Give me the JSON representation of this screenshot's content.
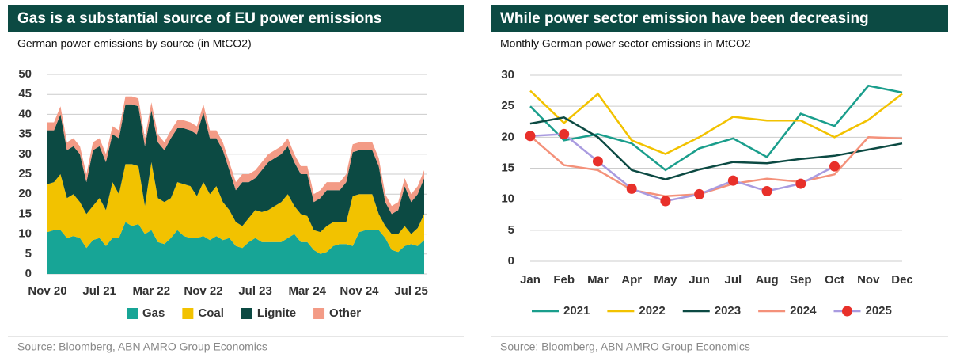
{
  "chart_data": [
    {
      "type": "area",
      "stacked": true,
      "title": "Gas is a substantial source of EU power emissions",
      "subtitle": "German power emissions by source (in MtCO2)",
      "source": "Source: Bloomberg, ABN AMRO Group Economics",
      "categories": [
        "Nov 20",
        null,
        null,
        null,
        null,
        null,
        null,
        null,
        "Jul 21",
        null,
        null,
        null,
        null,
        null,
        null,
        null,
        "Mar 22",
        null,
        null,
        null,
        null,
        null,
        null,
        null,
        "Nov 22",
        null,
        null,
        null,
        null,
        null,
        null,
        null,
        "Jul 23",
        null,
        null,
        null,
        null,
        null,
        null,
        null,
        "Mar 24",
        null,
        null,
        null,
        null,
        null,
        null,
        null,
        "Nov 24",
        null,
        null,
        null,
        null,
        null,
        null,
        null,
        "Jul 25",
        null,
        null
      ],
      "series": [
        {
          "name": "Gas",
          "color": "#17a596",
          "values": [
            10.5,
            11,
            11,
            9,
            9.5,
            9,
            6.5,
            8.5,
            9,
            7,
            9,
            9,
            13,
            12,
            12.5,
            10,
            11,
            8,
            7.5,
            9,
            11,
            9.5,
            9,
            9,
            9.5,
            8.5,
            9.5,
            8.5,
            9,
            7,
            6.5,
            8,
            9,
            8,
            8,
            8,
            8,
            9,
            10,
            8,
            8,
            6,
            5,
            5.5,
            7,
            7.5,
            7.5,
            7,
            10.5,
            11,
            11,
            11,
            9,
            6,
            5.5,
            7,
            7.5,
            7,
            8.5
          ]
        },
        {
          "name": "Coal",
          "color": "#f2c200",
          "values": [
            12,
            12,
            14,
            10,
            10.5,
            9,
            8.5,
            8.5,
            10,
            9,
            14,
            11,
            14.5,
            15.5,
            14.5,
            7,
            17,
            11,
            10.5,
            10,
            12,
            13,
            13,
            10.5,
            13.5,
            11.5,
            12.5,
            9.5,
            7,
            6,
            5.5,
            6,
            7,
            7.5,
            8,
            9,
            10,
            11,
            7,
            7,
            6.5,
            5,
            5.5,
            6.5,
            6,
            5.5,
            5.5,
            12.5,
            9.5,
            9,
            9,
            4,
            3,
            4,
            4.5,
            5,
            2.5,
            4.5,
            6.5
          ]
        },
        {
          "name": "Lignite",
          "color": "#0c4a43",
          "values": [
            13.5,
            13,
            15,
            12,
            12,
            12,
            8,
            14,
            13,
            12,
            12,
            14,
            15,
            15,
            15,
            15,
            13,
            14,
            13,
            15,
            13.5,
            14,
            14,
            15.5,
            17.5,
            14,
            12,
            13,
            10,
            8,
            11,
            9,
            8,
            10.5,
            12,
            12,
            12,
            12,
            11,
            10,
            10.5,
            7,
            8.5,
            9,
            8,
            8,
            10,
            11,
            11,
            11,
            11,
            12,
            6,
            5,
            6,
            10,
            8,
            8.5,
            9
          ]
        },
        {
          "name": "Other",
          "color": "#f39b86",
          "values": [
            2,
            2,
            2,
            2,
            2,
            2,
            2,
            2,
            2,
            2,
            2,
            2,
            2,
            2,
            2,
            2,
            2,
            2,
            2,
            2,
            2,
            2,
            2,
            2,
            2,
            2,
            2,
            2,
            2,
            2,
            2,
            2,
            2,
            2,
            2,
            2,
            2,
            2,
            2,
            2,
            2,
            2,
            2,
            2,
            2,
            2,
            2,
            2,
            2,
            2,
            2,
            2,
            2,
            2,
            2,
            2,
            2,
            2,
            2
          ]
        }
      ],
      "ylim": [
        0,
        50
      ],
      "yticks": [
        0,
        5,
        10,
        15,
        20,
        25,
        30,
        35,
        40,
        45,
        50
      ],
      "grid": true
    },
    {
      "type": "line",
      "title": "While power sector emission have been decreasing",
      "subtitle": "Monthly German power sector emissions in MtCO2",
      "source": "Source: Bloomberg, ABN AMRO Group Economics",
      "categories": [
        "Jan",
        "Feb",
        "Mar",
        "Apr",
        "May",
        "Jun",
        "Jul",
        "Aug",
        "Sep",
        "Oct",
        "Nov",
        "Dec"
      ],
      "series": [
        {
          "name": "2021",
          "color": "#1a9e8c",
          "values": [
            25,
            19.5,
            20.5,
            19,
            14.7,
            18.2,
            19.8,
            16.8,
            23.8,
            21.8,
            28.3,
            27.2
          ]
        },
        {
          "name": "2022",
          "color": "#f2c200",
          "values": [
            27.5,
            22.3,
            27,
            19.5,
            17.3,
            20,
            23.3,
            22.7,
            22.7,
            20,
            22.8,
            27
          ]
        },
        {
          "name": "2023",
          "color": "#0c4a43",
          "values": [
            22.2,
            23.2,
            20,
            14.7,
            13.2,
            14.8,
            16,
            15.8,
            16.5,
            17,
            18,
            19
          ]
        },
        {
          "name": "2024",
          "color": "#f4917a",
          "values": [
            20.2,
            15.5,
            14.7,
            11.5,
            10.5,
            10.8,
            12.5,
            13.3,
            12.8,
            14,
            20,
            19.8
          ]
        },
        {
          "name": "2025",
          "color": "#a99be0",
          "marker_color": "#e8302a",
          "values": [
            20.2,
            20.5,
            16.1,
            11.7,
            9.7,
            10.8,
            13,
            11.3,
            12.5,
            15.3,
            null,
            null
          ]
        }
      ],
      "ylim": [
        0,
        30
      ],
      "yticks": [
        0,
        5,
        10,
        15,
        20,
        25,
        30
      ],
      "grid": true
    }
  ]
}
